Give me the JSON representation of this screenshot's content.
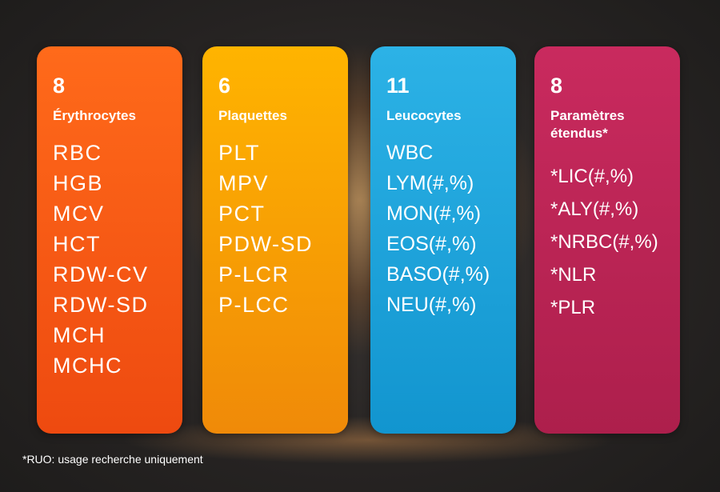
{
  "cards": [
    {
      "count": "8",
      "category": "Érythrocytes",
      "color": "#ee4a10",
      "items": [
        "RBC",
        "HGB",
        "MCV",
        "HCT",
        "RDW-CV",
        "RDW-SD",
        "MCH",
        "MCHC"
      ]
    },
    {
      "count": "6",
      "category": "Plaquettes",
      "color": "#f59e05",
      "items": [
        "PLT",
        "MPV",
        "PCT",
        "PDW-SD",
        "P-LCR",
        "P-LCC"
      ]
    },
    {
      "count": "11",
      "category": "Leucocytes",
      "color": "#1aa3da",
      "items": [
        "WBC",
        "LYM(#,%)",
        "MON(#,%)",
        "EOS(#,%)",
        "BASO(#,%)",
        "NEU(#,%)"
      ]
    },
    {
      "count": "8",
      "category_line1": "Paramètres",
      "category_line2": "étendus*",
      "color": "#b8224f",
      "items": [
        "*LIC(#,%)",
        "*ALY(#,%)",
        "*NRBC(#,%)",
        "*NLR",
        "*PLR"
      ]
    }
  ],
  "footnote": "*RUO: usage recherche uniquement"
}
